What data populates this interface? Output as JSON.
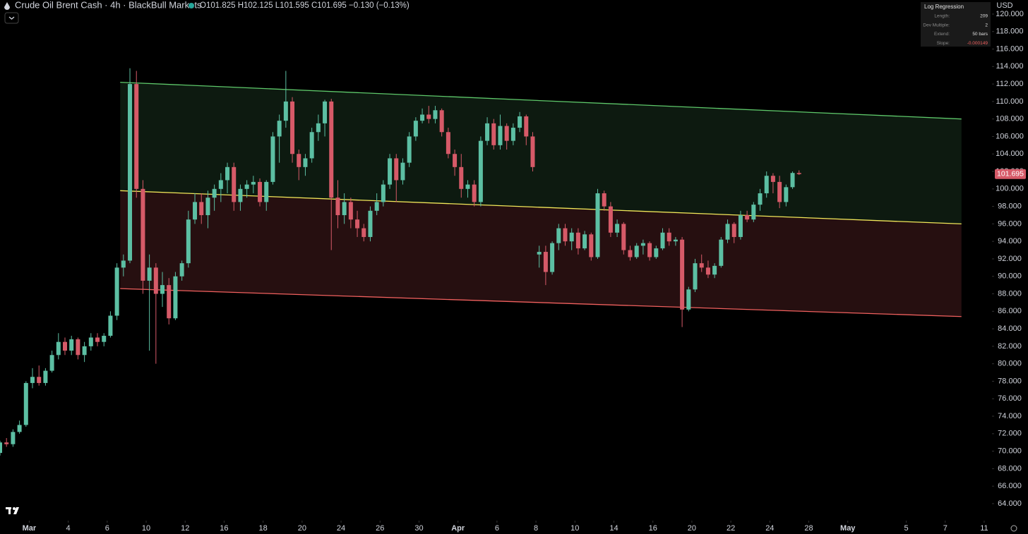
{
  "chart_data": {
    "type": "candlestick",
    "title": "Crude Oil Brent Cash · 4h · BlackBull Markets",
    "ohlc_label": "O101.825 H102.125 L101.595 C101.695 −0.130 (−0.13%)",
    "currency": "USD",
    "last_price_label": "101.695",
    "up_color": "#5cbfa3",
    "down_color": "#d65a68",
    "grid": false,
    "xlim": [
      0,
      305.4
    ],
    "ylim": [
      62.06,
      121.61
    ],
    "xticks": [
      {
        "value": 9,
        "label": "Mar"
      },
      {
        "value": 21,
        "label": "4"
      },
      {
        "value": 33,
        "label": "6"
      },
      {
        "value": 45,
        "label": "10"
      },
      {
        "value": 57,
        "label": "12"
      },
      {
        "value": 69,
        "label": "16"
      },
      {
        "value": 81,
        "label": "18"
      },
      {
        "value": 93,
        "label": "20"
      },
      {
        "value": 105,
        "label": "24"
      },
      {
        "value": 117,
        "label": "26"
      },
      {
        "value": 129,
        "label": "30"
      },
      {
        "value": 141,
        "label": "Apr"
      },
      {
        "value": 153,
        "label": "6"
      },
      {
        "value": 165,
        "label": "8"
      },
      {
        "value": 177,
        "label": "10"
      },
      {
        "value": 189,
        "label": "14"
      },
      {
        "value": 201,
        "label": "16"
      },
      {
        "value": 213,
        "label": "20"
      },
      {
        "value": 225,
        "label": "22"
      },
      {
        "value": 237,
        "label": "24"
      },
      {
        "value": 249,
        "label": "28"
      },
      {
        "value": 261,
        "label": "May"
      },
      {
        "value": 279,
        "label": "5"
      },
      {
        "value": 291,
        "label": "7"
      },
      {
        "value": 303,
        "label": "11"
      }
    ],
    "yticks": [
      {
        "value": 64,
        "label": "64.000"
      },
      {
        "value": 66,
        "label": "66.000"
      },
      {
        "value": 68,
        "label": "68.000"
      },
      {
        "value": 70,
        "label": "70.000"
      },
      {
        "value": 72,
        "label": "72.000"
      },
      {
        "value": 74,
        "label": "74.000"
      },
      {
        "value": 76,
        "label": "76.000"
      },
      {
        "value": 78,
        "label": "78.000"
      },
      {
        "value": 80,
        "label": "80.000"
      },
      {
        "value": 82,
        "label": "82.000"
      },
      {
        "value": 84,
        "label": "84.000"
      },
      {
        "value": 86,
        "label": "86.000"
      },
      {
        "value": 88,
        "label": "88.000"
      },
      {
        "value": 90,
        "label": "90.000"
      },
      {
        "value": 92,
        "label": "92.000"
      },
      {
        "value": 94,
        "label": "94.000"
      },
      {
        "value": 96,
        "label": "96.000"
      },
      {
        "value": 98,
        "label": "98.000"
      },
      {
        "value": 100,
        "label": "100.000"
      },
      {
        "value": 102,
        "label": "102.000"
      },
      {
        "value": 104,
        "label": "104.000"
      },
      {
        "value": 106,
        "label": "106.000"
      },
      {
        "value": 108,
        "label": "108.000"
      },
      {
        "value": 110,
        "label": "110.000"
      },
      {
        "value": 112,
        "label": "112.000"
      },
      {
        "value": 114,
        "label": "114.000"
      },
      {
        "value": 116,
        "label": "116.000"
      },
      {
        "value": 118,
        "label": "118.000"
      },
      {
        "value": 120,
        "label": "120.000"
      }
    ],
    "x": [
      0,
      2,
      4,
      6,
      8,
      10,
      12,
      14,
      16,
      18,
      20,
      22,
      24,
      26,
      28,
      30,
      32,
      34,
      36,
      38,
      40,
      42,
      44,
      46,
      48,
      50,
      52,
      54,
      56,
      58,
      60,
      62,
      64,
      66,
      68,
      70,
      72,
      74,
      76,
      78,
      80,
      82,
      84,
      86,
      88,
      90,
      92,
      94,
      96,
      98,
      100,
      102,
      104,
      106,
      108,
      110,
      112,
      114,
      116,
      118,
      120,
      122,
      124,
      126,
      128,
      130,
      132,
      134,
      136,
      138,
      140,
      142,
      144,
      146,
      148,
      150,
      152,
      154,
      156,
      158,
      160,
      162,
      164,
      166,
      168,
      170,
      172,
      174,
      176,
      178,
      180,
      182,
      184,
      186,
      188,
      190,
      192,
      194,
      196,
      198,
      200,
      202,
      204,
      206,
      208,
      210,
      212,
      214,
      216,
      218,
      220,
      222,
      224,
      226,
      228,
      230,
      232,
      234,
      236,
      238,
      240,
      242,
      244,
      246
    ],
    "ohlc": [
      [
        69.8,
        71.2,
        69.5,
        71
      ],
      [
        71,
        71.5,
        70.5,
        70.8
      ],
      [
        70.8,
        72.5,
        70.5,
        72.2
      ],
      [
        72.2,
        73.5,
        72,
        73
      ],
      [
        73,
        78,
        72.8,
        77.8
      ],
      [
        77.8,
        79.5,
        77.2,
        78.5
      ],
      [
        78.5,
        79.8,
        77.5,
        77.8
      ],
      [
        77.8,
        79.5,
        77.5,
        79.2
      ],
      [
        79.2,
        81.5,
        79,
        81
      ],
      [
        81,
        83.5,
        80.5,
        82.5
      ],
      [
        82.5,
        83,
        81,
        81.5
      ],
      [
        81.5,
        83.2,
        81,
        82.8
      ],
      [
        82.8,
        83,
        80.5,
        81
      ],
      [
        81,
        82.5,
        80.2,
        82
      ],
      [
        82,
        83.5,
        81.5,
        83
      ],
      [
        83,
        83.5,
        82,
        82.5
      ],
      [
        82.5,
        83.5,
        82,
        83.2
      ],
      [
        83.2,
        86,
        83,
        85.5
      ],
      [
        85.5,
        91.5,
        85,
        91
      ],
      [
        91,
        92.5,
        90,
        91.8
      ],
      [
        91.8,
        113.8,
        91.5,
        112
      ],
      [
        112,
        113.5,
        99,
        100
      ],
      [
        100,
        101,
        88,
        89.5
      ],
      [
        89.5,
        92.5,
        81.5,
        91
      ],
      [
        91,
        91.5,
        80,
        88
      ],
      [
        88,
        90.5,
        86.5,
        89
      ],
      [
        89,
        89.8,
        84.5,
        85.2
      ],
      [
        85.2,
        90.5,
        85,
        90
      ],
      [
        90,
        91.8,
        89.5,
        91.5
      ],
      [
        91.5,
        97.5,
        91,
        96.5
      ],
      [
        96.5,
        99.5,
        96,
        98.5
      ],
      [
        98.5,
        99.5,
        96,
        97
      ],
      [
        97,
        99.8,
        95.5,
        99
      ],
      [
        99,
        100.5,
        97.5,
        100
      ],
      [
        100,
        101.8,
        98.5,
        101
      ],
      [
        101,
        103,
        99.5,
        102.5
      ],
      [
        102.5,
        103,
        97.5,
        98.5
      ],
      [
        98.5,
        100.5,
        97.5,
        100
      ],
      [
        100,
        101,
        99,
        100.5
      ],
      [
        100.5,
        101.5,
        99.5,
        100.8
      ],
      [
        100.8,
        101.2,
        98,
        98.5
      ],
      [
        98.5,
        101,
        97.5,
        100.8
      ],
      [
        100.8,
        106.5,
        100.5,
        106
      ],
      [
        106,
        108.5,
        103,
        107.8
      ],
      [
        107.8,
        113.5,
        107,
        110
      ],
      [
        110,
        110.5,
        103,
        104
      ],
      [
        104,
        104.5,
        101,
        102.5
      ],
      [
        102.5,
        104,
        101.5,
        103.5
      ],
      [
        103.5,
        107,
        103,
        106.5
      ],
      [
        106.5,
        108.5,
        105.5,
        107.5
      ],
      [
        107.5,
        110.2,
        106,
        110
      ],
      [
        110,
        110.3,
        93,
        99
      ],
      [
        99,
        101,
        95.5,
        97
      ],
      [
        97,
        99.5,
        96,
        98.5
      ],
      [
        98.5,
        99,
        95.5,
        96.5
      ],
      [
        96.5,
        97.5,
        94.5,
        95.5
      ],
      [
        95.5,
        96,
        94,
        94.5
      ],
      [
        94.5,
        98,
        94,
        97.5
      ],
      [
        97.5,
        99.5,
        97,
        98.5
      ],
      [
        98.5,
        101,
        98,
        100.5
      ],
      [
        100.5,
        104,
        100,
        103.5
      ],
      [
        103.5,
        104,
        98.5,
        101
      ],
      [
        101,
        103.5,
        100.5,
        103
      ],
      [
        103,
        106.5,
        102.5,
        106
      ],
      [
        106,
        108.2,
        105.5,
        107.8
      ],
      [
        107.8,
        109.2,
        107.5,
        108.5
      ],
      [
        108.5,
        109.5,
        107.5,
        108
      ],
      [
        108,
        109.5,
        107.5,
        109
      ],
      [
        109,
        109.2,
        106,
        106.5
      ],
      [
        106.5,
        107,
        103.5,
        104
      ],
      [
        104,
        104.5,
        101.5,
        102.5
      ],
      [
        102.5,
        104,
        99,
        100
      ],
      [
        100,
        101,
        99,
        100.5
      ],
      [
        100.5,
        101,
        98,
        98.5
      ],
      [
        98.5,
        106,
        98,
        105.5
      ],
      [
        105.5,
        108.2,
        105,
        107.5
      ],
      [
        107.5,
        108,
        104.5,
        105
      ],
      [
        105,
        108.5,
        104.5,
        107.2
      ],
      [
        107.2,
        107.5,
        104.5,
        105.5
      ],
      [
        105.5,
        107.5,
        105,
        107
      ],
      [
        107,
        108.8,
        106.5,
        108.3
      ],
      [
        108.3,
        108.5,
        105,
        106
      ],
      [
        106,
        106.5,
        102,
        102.5
      ],
      [
        92.5,
        93.5,
        91,
        92.8
      ],
      [
        92.8,
        93.5,
        89,
        90.5
      ],
      [
        90.5,
        94,
        90.2,
        93.8
      ],
      [
        93.8,
        96,
        93,
        95.5
      ],
      [
        95.5,
        96,
        93.5,
        94
      ],
      [
        94,
        95.5,
        93,
        95
      ],
      [
        95,
        95.5,
        92.5,
        93.2
      ],
      [
        93.2,
        95.2,
        93,
        94.8
      ],
      [
        94.8,
        95,
        91.8,
        92.2
      ],
      [
        92.2,
        100,
        92,
        99.5
      ],
      [
        99.5,
        99.8,
        97.5,
        98
      ],
      [
        98,
        98.5,
        94.5,
        95
      ],
      [
        95,
        96.5,
        94.5,
        96
      ],
      [
        96,
        96.2,
        92.5,
        93
      ],
      [
        93,
        93.5,
        91.8,
        92.2
      ],
      [
        92.2,
        93.8,
        92,
        93.5
      ],
      [
        93.5,
        94.2,
        92.5,
        93.8
      ],
      [
        93.8,
        94,
        91.8,
        92.2
      ],
      [
        92.2,
        93.5,
        92,
        93.2
      ],
      [
        93.2,
        95.5,
        93,
        95
      ],
      [
        95,
        95.5,
        93.5,
        94
      ],
      [
        94,
        94.5,
        93.5,
        94.2
      ],
      [
        94.2,
        94.5,
        84.2,
        86.2
      ],
      [
        86.2,
        88.8,
        86,
        88.5
      ],
      [
        88.5,
        92,
        88.2,
        91.5
      ],
      [
        91.5,
        92.5,
        90.5,
        91
      ],
      [
        91,
        91.8,
        89.8,
        90.2
      ],
      [
        90.2,
        91.5,
        89.8,
        91.2
      ],
      [
        91.2,
        94.5,
        91,
        94.2
      ],
      [
        94.2,
        96.5,
        93.8,
        96
      ],
      [
        96,
        96.2,
        93.8,
        94.5
      ],
      [
        94.5,
        97.5,
        94.2,
        97
      ],
      [
        97,
        97.5,
        96.2,
        96.5
      ],
      [
        96.5,
        98.5,
        96.2,
        98.2
      ],
      [
        98.2,
        100,
        97.5,
        99.5
      ],
      [
        99.5,
        102,
        99,
        101.5
      ],
      [
        101.5,
        101.8,
        99.5,
        100.8
      ],
      [
        100.8,
        101.5,
        97.8,
        98.5
      ],
      [
        98.5,
        100.5,
        98,
        100.2
      ],
      [
        100.2,
        102,
        100,
        101.825
      ],
      [
        101.825,
        102.125,
        101.595,
        101.695
      ]
    ],
    "channel": {
      "x": [
        37,
        296
      ],
      "upper": [
        112.2,
        108
      ],
      "middle": [
        99.8,
        96
      ],
      "lower": [
        88.6,
        85.4
      ],
      "upper_color": "#5ec86a",
      "middle_color": "#f2e85a",
      "lower_color": "#f0605e",
      "upper_fill": "#0d1a10",
      "lower_fill": "#260f10"
    },
    "info": {
      "title": "Log Regression",
      "rows": [
        [
          "Length:",
          "209"
        ],
        [
          "Dev Multiple:",
          "2"
        ],
        [
          "Extend:",
          "50 bars"
        ],
        [
          "Slope:",
          "-0.000149"
        ]
      ]
    }
  }
}
